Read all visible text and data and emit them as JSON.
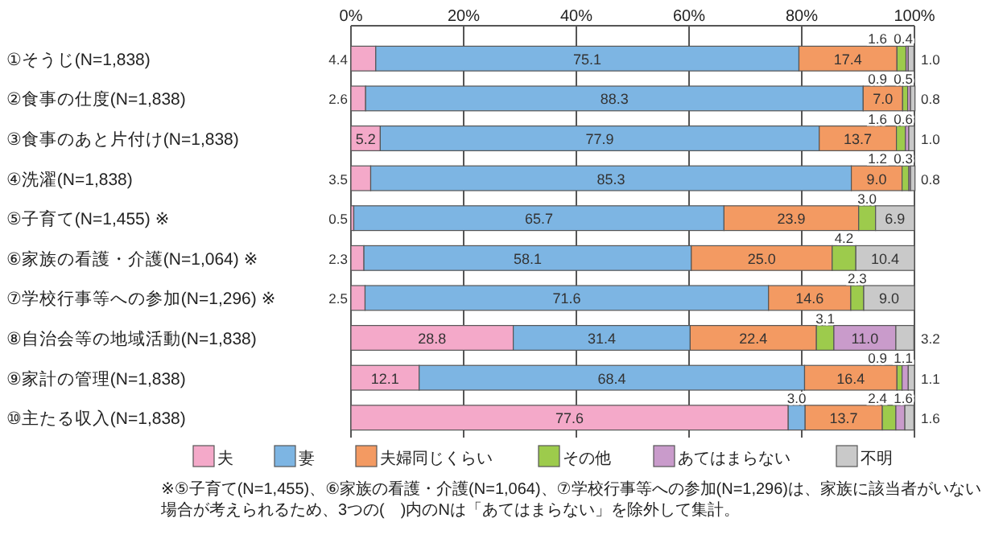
{
  "chart_data": {
    "type": "bar",
    "orientation": "horizontal",
    "stacked": true,
    "categories": [
      "①そうじ(N=1,838)",
      "②食事の仕度(N=1,838)",
      "③食事のあと片付け(N=1,838)",
      "④洗濯(N=1,838)",
      "⑤子育て(N=1,455) ※",
      "⑥家族の看護・介護(N=1,064) ※",
      "⑦学校行事等への参加(N=1,296) ※",
      "⑧自治会等の地域活動(N=1,838)",
      "⑨家計の管理(N=1,838)",
      "⑩主たる収入(N=1,838)"
    ],
    "series": [
      {
        "name": "夫",
        "color": "#f4a9c9",
        "values": [
          4.4,
          2.6,
          5.2,
          3.5,
          0.5,
          2.3,
          2.5,
          28.8,
          12.1,
          77.6
        ],
        "value_labels": [
          "4.4",
          "2.6",
          "5.2",
          "3.5",
          "0.5",
          "2.3",
          "2.5",
          "28.8",
          "12.1",
          "77.6"
        ]
      },
      {
        "name": "妻",
        "color": "#7db5e3",
        "values": [
          75.1,
          88.3,
          77.9,
          85.3,
          65.7,
          58.1,
          71.6,
          31.4,
          68.4,
          3.0
        ],
        "value_labels": [
          "75.1",
          "88.3",
          "77.9",
          "85.3",
          "65.7",
          "58.1",
          "71.6",
          "31.4",
          "68.4",
          "3.0"
        ]
      },
      {
        "name": "夫婦同じくらい",
        "color": "#f39a62",
        "values": [
          17.4,
          7.0,
          13.7,
          9.0,
          23.9,
          25.0,
          14.6,
          22.4,
          16.4,
          13.7
        ],
        "value_labels": [
          "17.4",
          "7.0",
          "13.7",
          "9.0",
          "23.9",
          "25.0",
          "14.6",
          "22.4",
          "16.4",
          "13.7"
        ]
      },
      {
        "name": "その他",
        "color": "#9dcb4c",
        "values": [
          1.6,
          0.9,
          1.6,
          1.2,
          3.0,
          4.2,
          2.3,
          3.1,
          0.9,
          2.4
        ],
        "value_labels": [
          "1.6",
          "0.9",
          "1.6",
          "1.2",
          "3.0",
          "4.2",
          "2.3",
          "3.1",
          "0.9",
          "2.4"
        ]
      },
      {
        "name": "あてはまらない",
        "color": "#c99bcb",
        "values": [
          0.4,
          0.5,
          0.6,
          0.3,
          null,
          null,
          null,
          11.0,
          1.1,
          1.6
        ],
        "value_labels": [
          "0.4",
          "0.5",
          "0.6",
          "0.3",
          null,
          null,
          null,
          "11.0",
          "1.1",
          "1.6"
        ]
      },
      {
        "name": "不明",
        "color": "#c9c9c9",
        "values": [
          1.0,
          0.8,
          1.0,
          0.8,
          6.9,
          10.4,
          9.0,
          3.2,
          1.1,
          1.6
        ],
        "value_labels": [
          "1.0",
          "0.8",
          "1.0",
          "0.8",
          "6.9",
          "10.4",
          "9.0",
          "3.2",
          "1.1",
          "1.6"
        ]
      }
    ],
    "xlim": [
      0,
      100
    ],
    "xticks": [
      {
        "value": 0,
        "label": "0%"
      },
      {
        "value": 20,
        "label": "20%"
      },
      {
        "value": 40,
        "label": "40%"
      },
      {
        "value": 60,
        "label": "60%"
      },
      {
        "value": 80,
        "label": "80%"
      },
      {
        "value": 100,
        "label": "100%"
      }
    ],
    "grid": "x",
    "legend": "bottom",
    "annotations": [
      "※⑤子育て(N=1,455)、⑥家族の看護・介護(N=1,064)、⑦学校行事等への参加(N=1,296)は、家族に該当者がいない場合が考えられるため、3つの(　)内のNは「あてはまらない」を除外して集計。"
    ]
  }
}
